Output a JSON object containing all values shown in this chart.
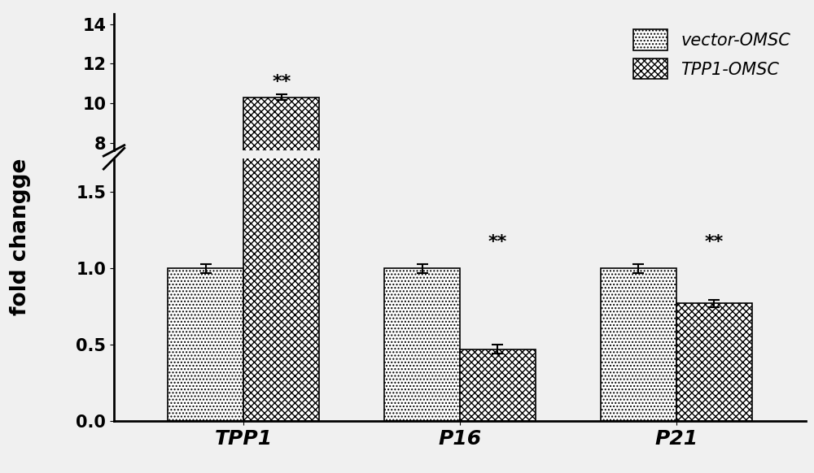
{
  "categories": [
    "TPP1",
    "P16",
    "P21"
  ],
  "vector_values": [
    1.0,
    1.0,
    1.0
  ],
  "tpp1_values": [
    10.3,
    0.47,
    0.77
  ],
  "vector_errors": [
    0.03,
    0.03,
    0.03
  ],
  "tpp1_errors": [
    0.15,
    0.03,
    0.025
  ],
  "vector_label": "vector-OMSC",
  "tpp1_label": "TPP1-OMSC",
  "ylabel": "fold changge",
  "bar_width": 0.35,
  "vector_color": "#ffffff",
  "tpp1_color": "#ffffff",
  "hatch_vector": "....",
  "hatch_tpp1": "XXXX",
  "lower_ylim": [
    0.0,
    1.72
  ],
  "upper_ylim": [
    7.6,
    14.5
  ],
  "lower_yticks": [
    0.0,
    0.5,
    1.0,
    1.5
  ],
  "upper_yticks": [
    8,
    10,
    12,
    14
  ],
  "lower_ytick_labels": [
    "0.0",
    "0.5",
    "1.0",
    "1.5"
  ],
  "upper_ytick_labels": [
    "8",
    "10",
    "12",
    "14"
  ],
  "background_color": "#f0f0f0",
  "tick_fontsize": 15,
  "label_fontsize": 19,
  "legend_fontsize": 15,
  "sig_fontsize": 16
}
